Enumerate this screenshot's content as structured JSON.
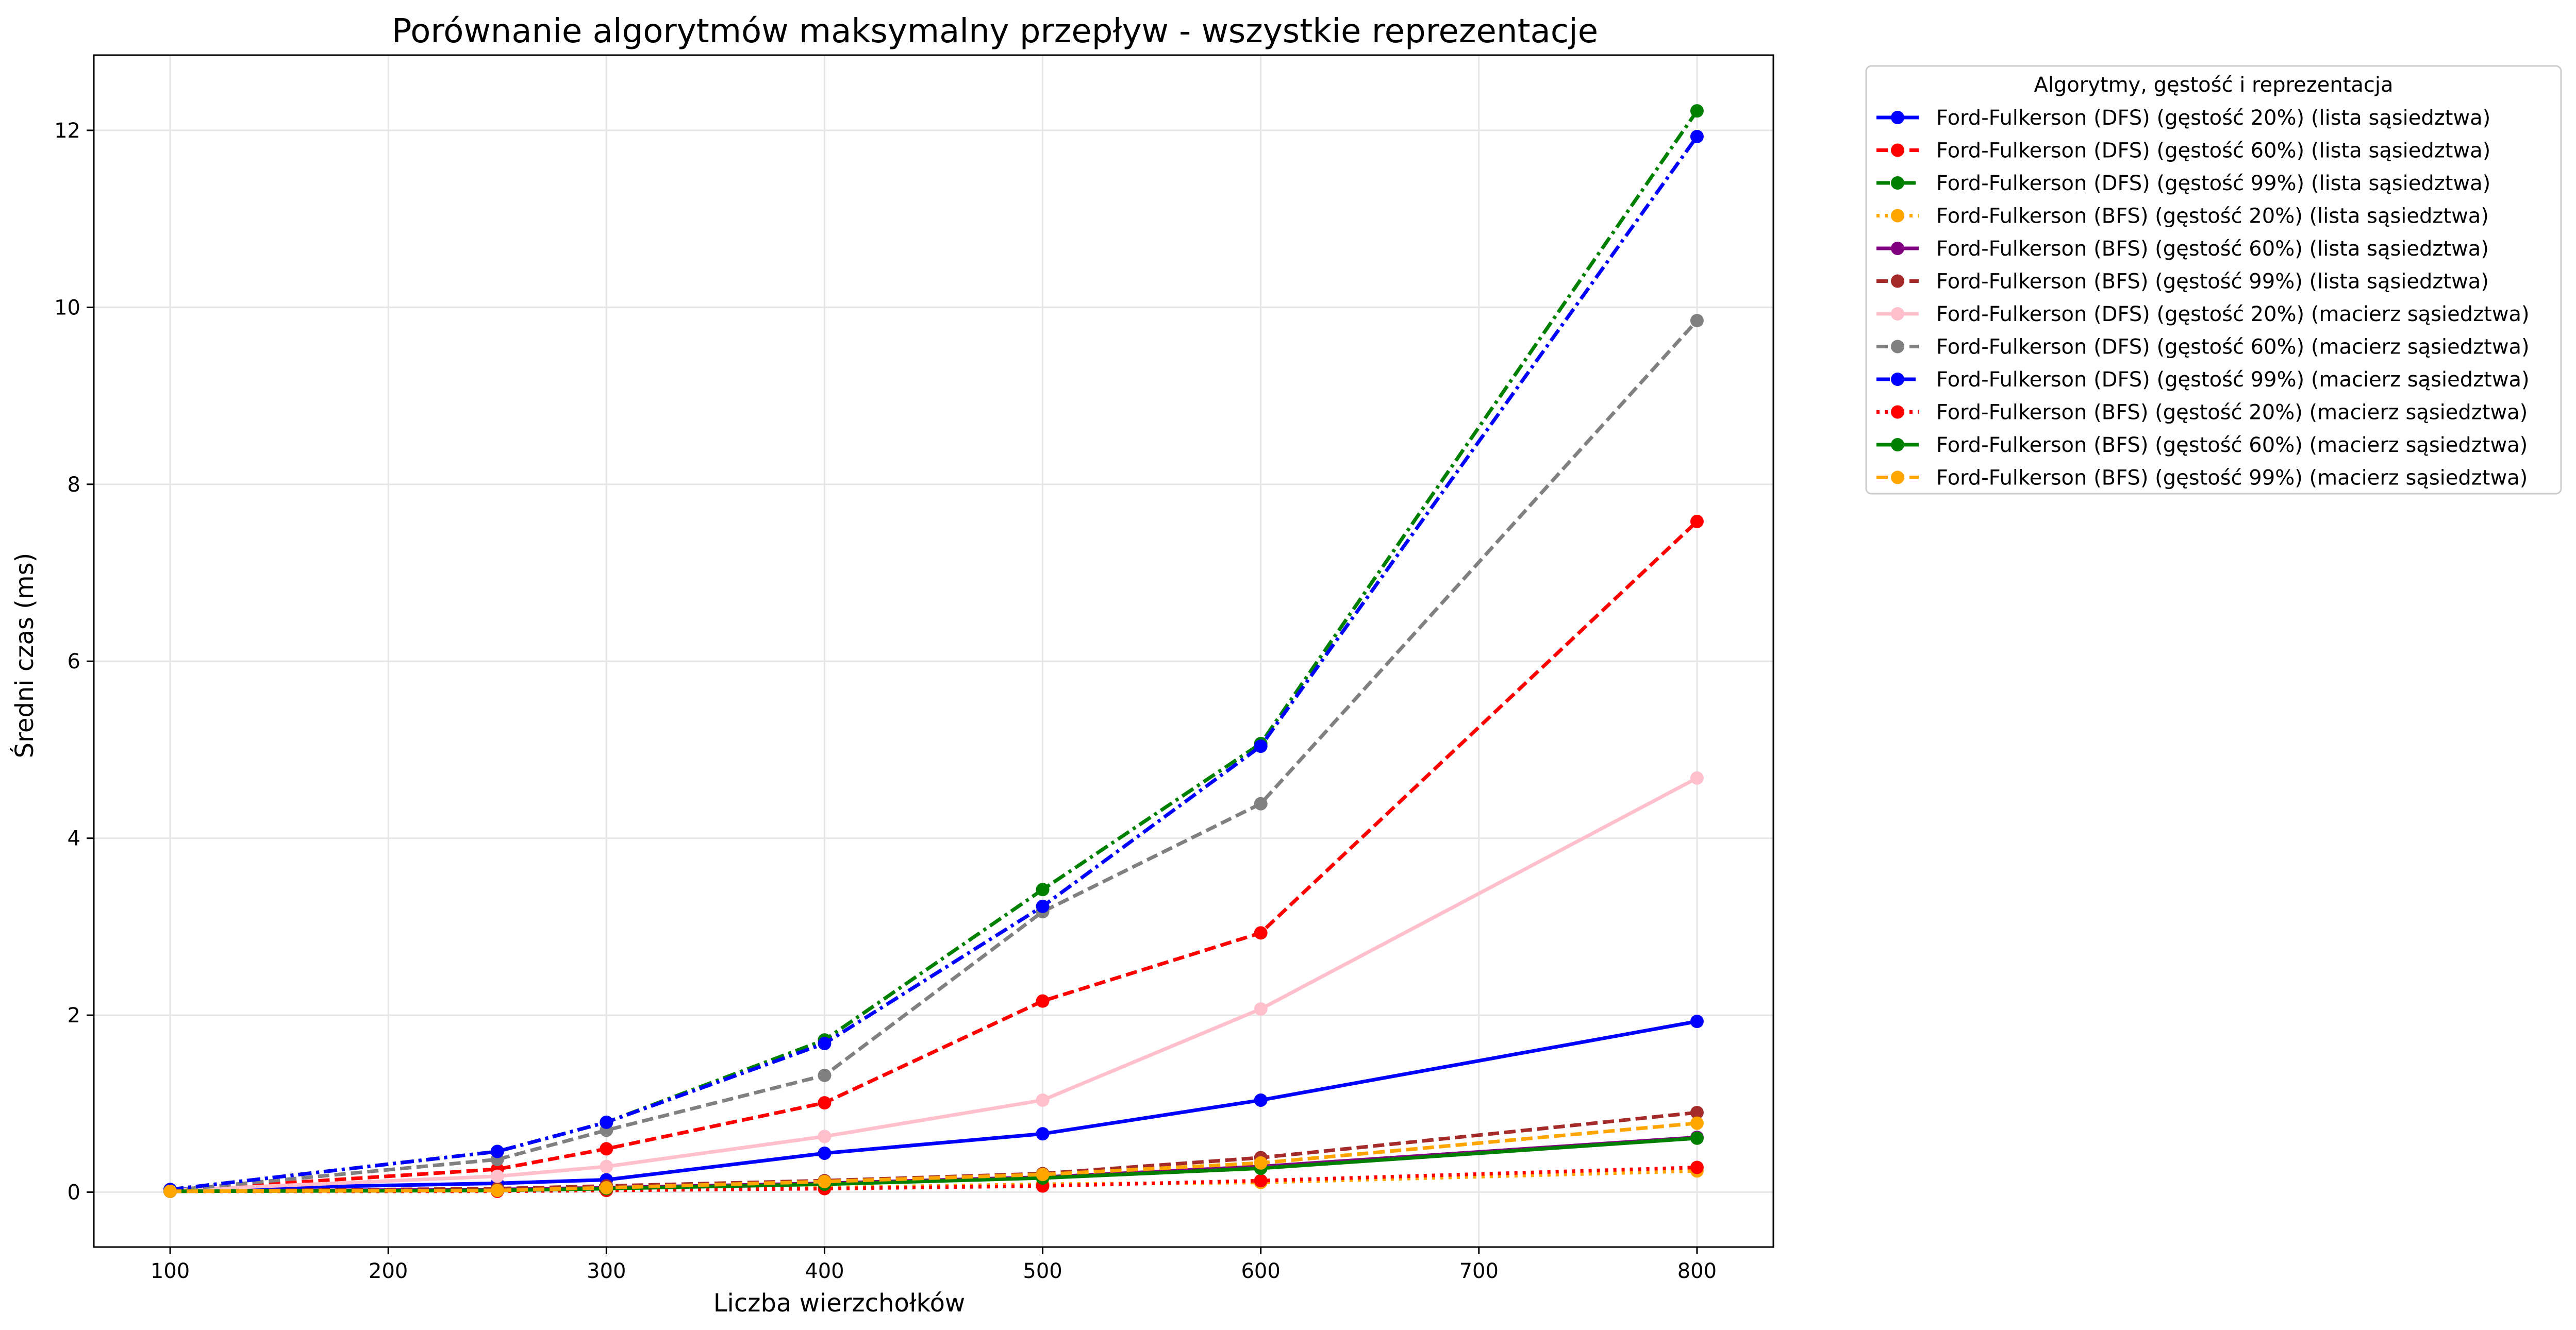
{
  "chart_data": {
    "type": "line",
    "title": "Porównanie algorytmów maksymalny przepływ - wszystkie reprezentacje",
    "xlabel": "Liczba wierzchołków",
    "ylabel": "Średni czas (ms)",
    "x": [
      100,
      250,
      300,
      400,
      500,
      600,
      800
    ],
    "xlim": [
      65,
      835
    ],
    "ylim": [
      -0.62,
      12.85
    ],
    "xticks": [
      100,
      200,
      300,
      400,
      500,
      600,
      700,
      800
    ],
    "yticks": [
      0,
      2,
      4,
      6,
      8,
      10,
      12
    ],
    "grid": true,
    "legend_title": "Algorytmy, gęstość i reprezentacja",
    "legend_position": "outside right, top",
    "series": [
      {
        "name": "Ford-Fulkerson (DFS) (gęstość 20%) (lista sąsiedztwa)",
        "color": "#0000ff",
        "dash": "solid",
        "values": [
          0.03,
          0.1,
          0.14,
          0.44,
          0.66,
          1.04,
          1.93
        ]
      },
      {
        "name": "Ford-Fulkerson (DFS) (gęstość 60%) (lista sąsiedztwa)",
        "color": "#ff0000",
        "dash": "dashed",
        "values": [
          0.02,
          0.26,
          0.49,
          1.01,
          2.16,
          2.93,
          7.58
        ]
      },
      {
        "name": "Ford-Fulkerson (DFS) (gęstość 99%) (lista sąsiedztwa)",
        "color": "#008000",
        "dash": "dashdot",
        "values": [
          0.03,
          0.46,
          0.79,
          1.72,
          3.42,
          5.07,
          12.22
        ]
      },
      {
        "name": "Ford-Fulkerson (BFS) (gęstość 20%) (lista sąsiedztwa)",
        "color": "#ffa500",
        "dash": "dotted",
        "values": [
          0.01,
          0.02,
          0.03,
          0.05,
          0.09,
          0.11,
          0.24
        ]
      },
      {
        "name": "Ford-Fulkerson (BFS) (gęstość 60%) (lista sąsiedztwa)",
        "color": "#800080",
        "dash": "solid",
        "values": [
          0.01,
          0.03,
          0.05,
          0.1,
          0.17,
          0.29,
          0.62
        ]
      },
      {
        "name": "Ford-Fulkerson (BFS) (gęstość 99%) (lista sąsiedztwa)",
        "color": "#a52a2a",
        "dash": "dashed",
        "values": [
          0.01,
          0.04,
          0.07,
          0.13,
          0.21,
          0.39,
          0.9
        ]
      },
      {
        "name": "Ford-Fulkerson (DFS) (gęstość 20%) (macierz sąsiedztwa)",
        "color": "#ffc0cb",
        "dash": "solid",
        "values": [
          0.02,
          0.18,
          0.29,
          0.63,
          1.04,
          2.07,
          4.68
        ]
      },
      {
        "name": "Ford-Fulkerson (DFS) (gęstość 60%) (macierz sąsiedztwa)",
        "color": "#808080",
        "dash": "dashed",
        "values": [
          0.02,
          0.37,
          0.7,
          1.32,
          3.17,
          4.39,
          9.85
        ]
      },
      {
        "name": "Ford-Fulkerson (DFS) (gęstość 99%) (macierz sąsiedztwa)",
        "color": "#0000ff",
        "dash": "dashdot",
        "values": [
          0.03,
          0.46,
          0.79,
          1.68,
          3.23,
          5.04,
          11.93
        ]
      },
      {
        "name": "Ford-Fulkerson (BFS) (gęstość 20%) (macierz sąsiedztwa)",
        "color": "#ff0000",
        "dash": "dotted",
        "values": [
          0.01,
          0.01,
          0.02,
          0.04,
          0.07,
          0.13,
          0.28
        ]
      },
      {
        "name": "Ford-Fulkerson (BFS) (gęstość 60%) (macierz sąsiedztwa)",
        "color": "#008000",
        "dash": "solid",
        "values": [
          0.01,
          0.02,
          0.04,
          0.09,
          0.16,
          0.27,
          0.61
        ]
      },
      {
        "name": "Ford-Fulkerson (BFS) (gęstość 99%) (macierz sąsiedztwa)",
        "color": "#ffa500",
        "dash": "dashed",
        "values": [
          0.01,
          0.02,
          0.05,
          0.12,
          0.2,
          0.33,
          0.78
        ]
      }
    ]
  }
}
